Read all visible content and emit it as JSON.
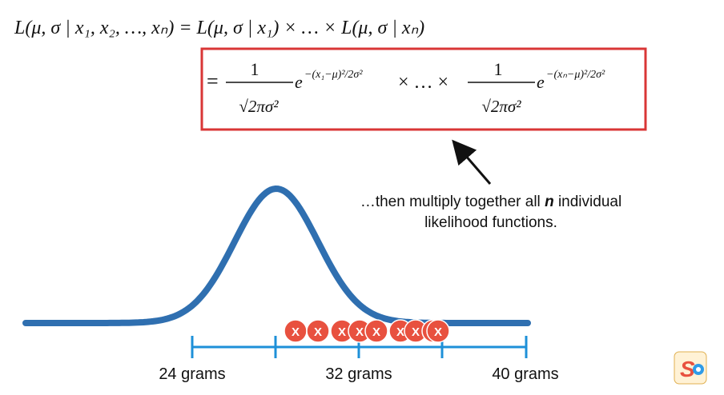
{
  "equation": {
    "line1": "L(μ, σ | x₁, x₂, …, xₙ) = L(μ, σ | x₁) × … × L(μ, σ | xₙ)",
    "line2_eq": "=",
    "term_numerator": "1",
    "term_denominator": "√2πσ²",
    "term1_exponent": "−(x₁−μ)²/2σ²",
    "times_ellipsis": "× … ×",
    "termn_exponent": "−(xₙ−μ)²/2σ²",
    "box_color": "#d93636"
  },
  "annotation": {
    "line1_pre": "…then multiply together all ",
    "line1_bold": "n",
    "line1_post": " individual",
    "line2": "likelihood functions."
  },
  "axis": {
    "labels": [
      "24 grams",
      "32 grams",
      "40 grams"
    ],
    "color": "#1e90d8"
  },
  "curve_color": "#2f6fb0",
  "samples": {
    "mark": "X",
    "count": 9,
    "color": "#e8513f"
  },
  "logo": {
    "text": "S",
    "icon": "statquest-logo-icon"
  }
}
